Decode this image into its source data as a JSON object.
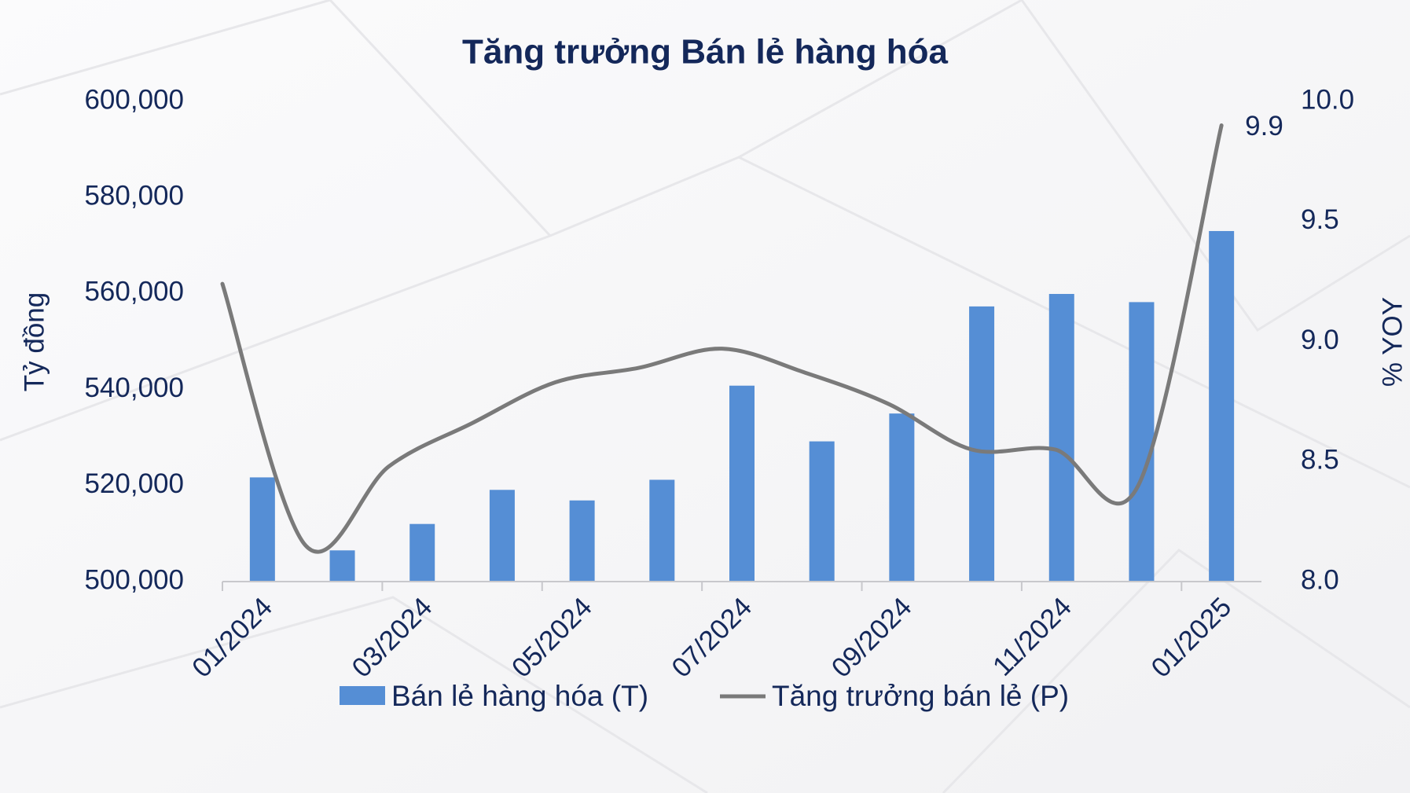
{
  "chart_data": {
    "type": "bar",
    "title": "Tăng trưởng Bán lẻ hàng hóa",
    "y_label": "Tỷ đồng",
    "y2_label": "% YOY",
    "categories": [
      "01/2024",
      null,
      "03/2024",
      null,
      "05/2024",
      null,
      "07/2024",
      null,
      "09/2024",
      null,
      "11/2024",
      null,
      "01/2025"
    ],
    "series": [
      {
        "name": "Bán lẻ hàng hóa (T)",
        "type": "bar",
        "color": "#558ed5",
        "values": [
          521700,
          506500,
          512000,
          519100,
          516900,
          521200,
          540800,
          529200,
          535000,
          557300,
          559900,
          558200,
          573000
        ]
      },
      {
        "name": "Tăng trưởng bán lẻ (P)",
        "type": "line",
        "axis": "y2",
        "color": "#7a7a7a",
        "smooth": true,
        "values": [
          9.24,
          8.15,
          8.48,
          8.66,
          8.83,
          8.89,
          8.97,
          8.87,
          8.74,
          8.55,
          8.55,
          8.4,
          9.9
        ]
      }
    ],
    "ylim": [
      500000,
      600000
    ],
    "yticks": [
      {
        "value": 500000,
        "label": "500,000"
      },
      {
        "value": 520000,
        "label": "520,000"
      },
      {
        "value": 540000,
        "label": "540,000"
      },
      {
        "value": 560000,
        "label": "560,000"
      },
      {
        "value": 580000,
        "label": "580,000"
      },
      {
        "value": 600000,
        "label": "600,000"
      }
    ],
    "y2lim": [
      8,
      10
    ],
    "y2ticks": [
      {
        "value": 8,
        "label": "8.0"
      },
      8.5,
      {
        "value": 9,
        "label": "9.0"
      },
      9.5,
      {
        "value": 10,
        "label": "10.0"
      }
    ],
    "legend": "bottom"
  }
}
